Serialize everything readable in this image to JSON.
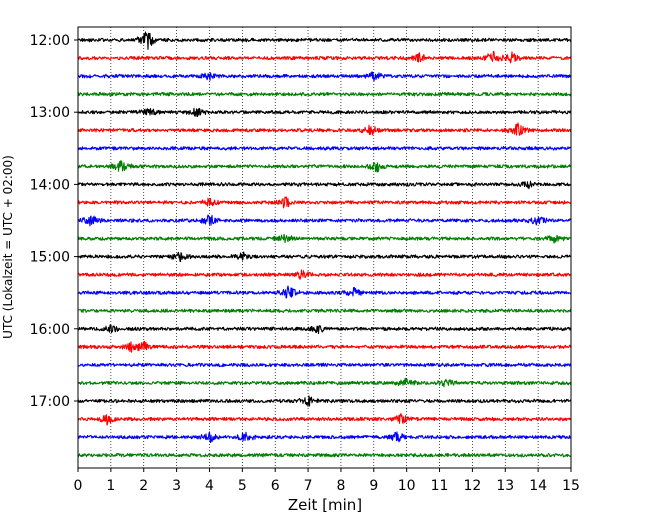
{
  "chart_data": {
    "type": "line",
    "title": "",
    "xlabel": "Zeit  [min]",
    "ylabel": "UTC (Lokalzeit = UTC + 02:00)",
    "xlim": [
      0,
      15
    ],
    "x_ticks": [
      "0",
      "1",
      "2",
      "3",
      "4",
      "5",
      "6",
      "7",
      "8",
      "9",
      "10",
      "11",
      "12",
      "13",
      "14",
      "15"
    ],
    "y_ticks": [
      "12:00",
      "13:00",
      "14:00",
      "15:00",
      "16:00",
      "17:00"
    ],
    "grid": "vertical dotted",
    "legend": "none",
    "color_cycle": [
      "#000000",
      "#ff0000",
      "#0000ff",
      "#008000"
    ],
    "series": [
      {
        "row_time": "12:00",
        "color": "#000000",
        "bursts": [
          [
            2.1,
            3.0
          ]
        ]
      },
      {
        "row_time": "12:15",
        "color": "#ff0000",
        "bursts": [
          [
            12.6,
            2.5
          ],
          [
            13.2,
            1.5
          ],
          [
            10.4,
            1.3
          ]
        ]
      },
      {
        "row_time": "12:30",
        "color": "#0000ff",
        "bursts": [
          [
            9.0,
            1.5
          ],
          [
            4.0,
            1.2
          ]
        ]
      },
      {
        "row_time": "12:45",
        "color": "#008000",
        "bursts": []
      },
      {
        "row_time": "13:00",
        "color": "#000000",
        "bursts": [
          [
            3.6,
            1.4
          ],
          [
            2.2,
            1.2
          ]
        ]
      },
      {
        "row_time": "13:15",
        "color": "#ff0000",
        "bursts": [
          [
            13.4,
            2.4
          ],
          [
            8.9,
            1.6
          ]
        ]
      },
      {
        "row_time": "13:30",
        "color": "#0000ff",
        "bursts": []
      },
      {
        "row_time": "13:45",
        "color": "#008000",
        "bursts": [
          [
            1.3,
            2.0
          ],
          [
            9.1,
            1.6
          ]
        ]
      },
      {
        "row_time": "14:00",
        "color": "#000000",
        "bursts": [
          [
            13.7,
            1.0
          ]
        ]
      },
      {
        "row_time": "14:15",
        "color": "#ff0000",
        "bursts": [
          [
            6.3,
            1.8
          ],
          [
            4.0,
            1.5
          ]
        ]
      },
      {
        "row_time": "14:30",
        "color": "#0000ff",
        "bursts": [
          [
            4.0,
            1.8
          ],
          [
            0.4,
            1.8
          ],
          [
            14.0,
            1.5
          ]
        ]
      },
      {
        "row_time": "14:45",
        "color": "#008000",
        "bursts": [
          [
            14.5,
            1.4
          ],
          [
            6.3,
            1.3
          ]
        ]
      },
      {
        "row_time": "15:00",
        "color": "#000000",
        "bursts": [
          [
            3.1,
            1.5
          ],
          [
            5.0,
            1.3
          ]
        ]
      },
      {
        "row_time": "15:15",
        "color": "#ff0000",
        "bursts": [
          [
            6.8,
            1.5
          ]
        ]
      },
      {
        "row_time": "15:30",
        "color": "#0000ff",
        "bursts": [
          [
            6.4,
            2.4
          ],
          [
            8.4,
            1.3
          ]
        ]
      },
      {
        "row_time": "15:45",
        "color": "#008000",
        "bursts": []
      },
      {
        "row_time": "16:00",
        "color": "#000000",
        "bursts": [
          [
            7.3,
            1.2
          ],
          [
            1.0,
            1.0
          ]
        ]
      },
      {
        "row_time": "16:15",
        "color": "#ff0000",
        "bursts": [
          [
            1.6,
            1.7
          ],
          [
            2.0,
            1.5
          ]
        ]
      },
      {
        "row_time": "16:30",
        "color": "#0000ff",
        "bursts": []
      },
      {
        "row_time": "16:45",
        "color": "#008000",
        "bursts": [
          [
            10.0,
            1.4
          ],
          [
            11.2,
            1.2
          ]
        ]
      },
      {
        "row_time": "17:00",
        "color": "#000000",
        "bursts": [
          [
            7.0,
            1.4
          ]
        ]
      },
      {
        "row_time": "17:15",
        "color": "#ff0000",
        "bursts": [
          [
            0.9,
            1.6
          ],
          [
            9.8,
            1.6
          ]
        ]
      },
      {
        "row_time": "17:30",
        "color": "#0000ff",
        "bursts": [
          [
            4.0,
            1.6
          ],
          [
            5.1,
            1.6
          ],
          [
            9.7,
            1.6
          ]
        ]
      },
      {
        "row_time": "17:45",
        "color": "#008000",
        "bursts": []
      }
    ]
  }
}
